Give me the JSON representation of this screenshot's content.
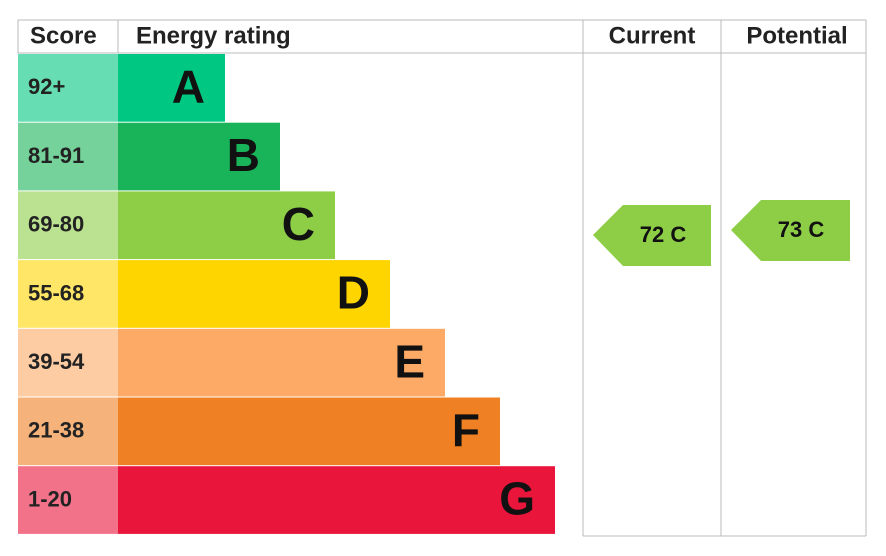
{
  "header": {
    "score": "Score",
    "energy_rating": "Energy rating",
    "current": "Current",
    "potential": "Potential"
  },
  "rows": [
    {
      "score": "92+",
      "rating": "A",
      "color": "#00c781"
    },
    {
      "score": "81-91",
      "rating": "B",
      "color": "#19b459"
    },
    {
      "score": "69-80",
      "rating": "C",
      "color": "#8dce46"
    },
    {
      "score": "55-68",
      "rating": "D",
      "color": "#ffd500"
    },
    {
      "score": "39-54",
      "rating": "E",
      "color": "#fcaa65"
    },
    {
      "score": "21-38",
      "rating": "F",
      "color": "#ef8023"
    },
    {
      "score": "1-20",
      "rating": "G",
      "color": "#e9153b"
    }
  ],
  "current": {
    "label": "72 C",
    "color": "#8dce46"
  },
  "potential": {
    "label": "73 C",
    "color": "#8dce46"
  }
}
